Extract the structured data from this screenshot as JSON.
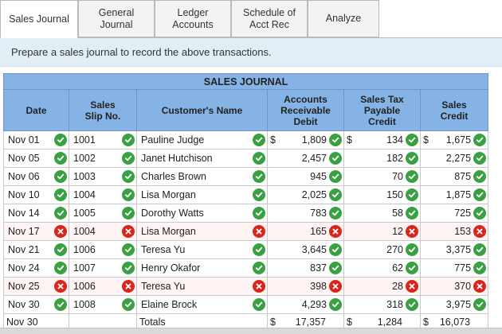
{
  "tabs": [
    {
      "label": "Sales Journal",
      "active": true
    },
    {
      "label": "General\nJournal",
      "active": false
    },
    {
      "label": "Ledger\nAccounts",
      "active": false
    },
    {
      "label": "Schedule of\nAcct Rec",
      "active": false
    },
    {
      "label": "Analyze",
      "active": false
    }
  ],
  "instruction": "Prepare a sales journal to record the above transactions.",
  "journal": {
    "title": "SALES JOURNAL",
    "headers": {
      "date": "Date",
      "slip": "Sales\nSlip No.",
      "customer": "Customer's Name",
      "ar": "Accounts\nReceivable\nDebit",
      "tax": "Sales Tax\nPayable\nCredit",
      "sales": "Sales\nCredit"
    },
    "rows": [
      {
        "date": "Nov 01",
        "date_ok": true,
        "slip": "1001",
        "slip_ok": true,
        "customer": "Pauline Judge",
        "cust_ok": true,
        "ar_dollar": "$",
        "ar": "1,809",
        "ar_ok": true,
        "tax_dollar": "$",
        "tax": "134",
        "tax_ok": true,
        "sales_dollar": "$",
        "sales": "1,675",
        "sales_ok": true
      },
      {
        "date": "Nov 05",
        "date_ok": true,
        "slip": "1002",
        "slip_ok": true,
        "customer": "Janet Hutchison",
        "cust_ok": true,
        "ar_dollar": "",
        "ar": "2,457",
        "ar_ok": true,
        "tax_dollar": "",
        "tax": "182",
        "tax_ok": true,
        "sales_dollar": "",
        "sales": "2,275",
        "sales_ok": true
      },
      {
        "date": "Nov 06",
        "date_ok": true,
        "slip": "1003",
        "slip_ok": true,
        "customer": "Charles Brown",
        "cust_ok": true,
        "ar_dollar": "",
        "ar": "945",
        "ar_ok": true,
        "tax_dollar": "",
        "tax": "70",
        "tax_ok": true,
        "sales_dollar": "",
        "sales": "875",
        "sales_ok": true
      },
      {
        "date": "Nov 10",
        "date_ok": true,
        "slip": "1004",
        "slip_ok": true,
        "customer": "Lisa Morgan",
        "cust_ok": true,
        "ar_dollar": "",
        "ar": "2,025",
        "ar_ok": true,
        "tax_dollar": "",
        "tax": "150",
        "tax_ok": true,
        "sales_dollar": "",
        "sales": "1,875",
        "sales_ok": true
      },
      {
        "date": "Nov 14",
        "date_ok": true,
        "slip": "1005",
        "slip_ok": true,
        "customer": "Dorothy Watts",
        "cust_ok": true,
        "ar_dollar": "",
        "ar": "783",
        "ar_ok": true,
        "tax_dollar": "",
        "tax": "58",
        "tax_ok": true,
        "sales_dollar": "",
        "sales": "725",
        "sales_ok": true
      },
      {
        "date": "Nov 17",
        "date_ok": false,
        "slip": "1004",
        "slip_ok": false,
        "customer": "Lisa Morgan",
        "cust_ok": false,
        "ar_dollar": "",
        "ar": "165",
        "ar_ok": false,
        "tax_dollar": "",
        "tax": "12",
        "tax_ok": false,
        "sales_dollar": "",
        "sales": "153",
        "sales_ok": false
      },
      {
        "date": "Nov 21",
        "date_ok": true,
        "slip": "1006",
        "slip_ok": true,
        "customer": "Teresa Yu",
        "cust_ok": true,
        "ar_dollar": "",
        "ar": "3,645",
        "ar_ok": true,
        "tax_dollar": "",
        "tax": "270",
        "tax_ok": true,
        "sales_dollar": "",
        "sales": "3,375",
        "sales_ok": true
      },
      {
        "date": "Nov 24",
        "date_ok": true,
        "slip": "1007",
        "slip_ok": true,
        "customer": "Henry Okafor",
        "cust_ok": true,
        "ar_dollar": "",
        "ar": "837",
        "ar_ok": true,
        "tax_dollar": "",
        "tax": "62",
        "tax_ok": true,
        "sales_dollar": "",
        "sales": "775",
        "sales_ok": true
      },
      {
        "date": "Nov 25",
        "date_ok": false,
        "slip": "1006",
        "slip_ok": false,
        "customer": "Teresa Yu",
        "cust_ok": false,
        "ar_dollar": "",
        "ar": "398",
        "ar_ok": false,
        "tax_dollar": "",
        "tax": "28",
        "tax_ok": false,
        "sales_dollar": "",
        "sales": "370",
        "sales_ok": false
      },
      {
        "date": "Nov 30",
        "date_ok": true,
        "slip": "1008",
        "slip_ok": true,
        "customer": "Elaine Brock",
        "cust_ok": true,
        "ar_dollar": "",
        "ar": "4,293",
        "ar_ok": true,
        "tax_dollar": "",
        "tax": "318",
        "tax_ok": true,
        "sales_dollar": "",
        "sales": "3,975",
        "sales_ok": true
      }
    ],
    "totals": {
      "date": "Nov 30",
      "label": "Totals",
      "ar_dollar": "$",
      "ar": "17,357",
      "tax_dollar": "$",
      "tax": "1,284",
      "sales_dollar": "$",
      "sales": "16,073"
    }
  },
  "colors": {
    "check": "#3aa143",
    "cross": "#d9261c",
    "header": "#86b3e6"
  },
  "icons": {
    "ok": "check-icon",
    "bad": "cross-icon"
  }
}
